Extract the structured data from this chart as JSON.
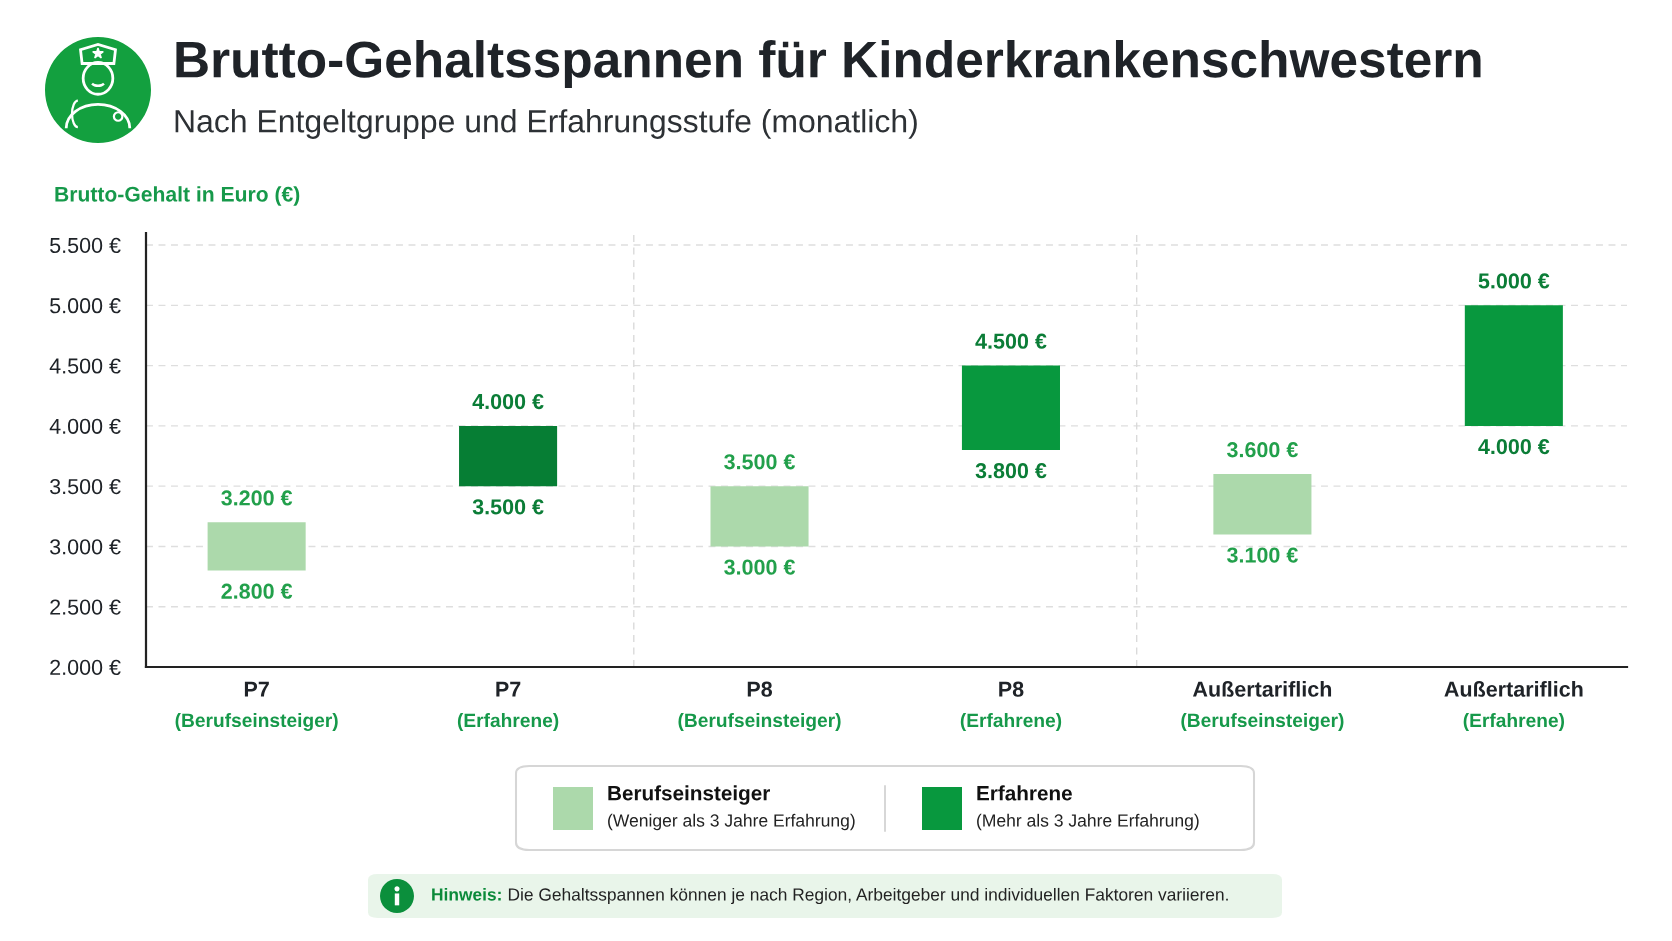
{
  "chart_data": {
    "type": "bar",
    "title": "Brutto-Gehaltsspannen für Kinderkrankenschwestern",
    "subtitle": "Nach Entgeltgruppe und Erfahrungsstufe (monatlich)",
    "ylabel": "Brutto-Gehalt in Euro (€)",
    "categories": [
      "P7\n(Berufseinsteiger)",
      "P7\n(Erfahrene)",
      "P8\n(Berufseinsteiger)",
      "P8\n(Erfahrene)",
      "Außertariflich\n(Berufseinsteiger)",
      "Außertariflich\n(Erfahrene)"
    ],
    "series": [
      {
        "name": "Berufseinsteiger\n(Weniger als 3 Jahre Erfahrung)",
        "color": "#acd9ab",
        "values": [
          400,
          null,
          500,
          null,
          500,
          null
        ],
        "base": [
          2800,
          null,
          3000,
          null,
          3100,
          null
        ]
      },
      {
        "name": "Erfahrene\n(Mehr als 3 Jahre Erfahrung)",
        "color": "#08983e",
        "colors": [
          null,
          "#067e34",
          null,
          "#08983e",
          null,
          "#08983e"
        ],
        "values": [
          null,
          500,
          null,
          700,
          null,
          1000
        ],
        "base": [
          null,
          3500,
          null,
          3800,
          null,
          4000
        ]
      }
    ],
    "ylim": [
      2000,
      5600
    ],
    "yticks": [
      {
        "value": 2000,
        "label": "2.000 €"
      },
      {
        "value": 2500,
        "label": "2.500 €"
      },
      {
        "value": 3000,
        "label": "3.000 €"
      },
      {
        "value": 3500,
        "label": "3.500 €"
      },
      {
        "value": 4000,
        "label": "4.000 €"
      },
      {
        "value": 4500,
        "label": "4.500 €"
      },
      {
        "value": 5000,
        "label": "5.000 €"
      },
      {
        "value": 5500,
        "label": "5.500 €"
      }
    ],
    "grid": "y",
    "legend": "bottom",
    "annotations": [
      {
        "text": "3.200 €",
        "x": "P7\n(Berufseinsteiger)",
        "y": 3200
      },
      {
        "text": "2.800 €",
        "x": "P7\n(Berufseinsteiger)",
        "y": 2800
      },
      {
        "text": "4.000 €",
        "x": "P7\n(Erfahrene)",
        "y": 4000
      },
      {
        "text": "3.500 €",
        "x": "P7\n(Erfahrene)",
        "y": 3500
      },
      {
        "text": "3.500 €",
        "x": "P8\n(Berufseinsteiger)",
        "y": 3500
      },
      {
        "text": "3.000 €",
        "x": "P8\n(Berufseinsteiger)",
        "y": 3000
      },
      {
        "text": "4.500 €",
        "x": "P8\n(Erfahrene)",
        "y": 4500
      },
      {
        "text": "3.800 €",
        "x": "P8\n(Erfahrene)",
        "y": 3800
      },
      {
        "text": "3.600 €",
        "x": "Außertariflich\n(Berufseinsteiger)",
        "y": 3600
      },
      {
        "text": "3.100 €",
        "x": "Außertariflich\n(Berufseinsteiger)",
        "y": 3100
      },
      {
        "text": "5.000 €",
        "x": "Außertariflich\n(Erfahrene)",
        "y": 5000
      },
      {
        "text": "4.000 €",
        "x": "Außertariflich\n(Erfahrene)",
        "y": 4000
      },
      "Hinweis: Die Gehaltsspannen können je nach Region, Arbeitgeber und individuellen Faktoren variieren."
    ]
  }
}
